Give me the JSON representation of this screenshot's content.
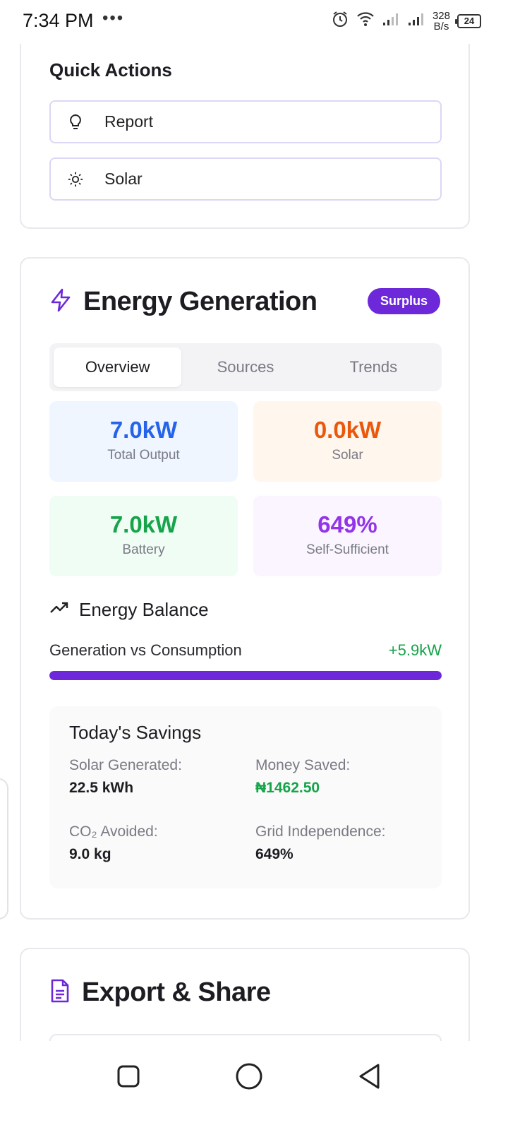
{
  "status_bar": {
    "time": "7:34 PM",
    "dots": "•••",
    "net_speed_value": "328",
    "net_speed_unit": "B/s",
    "battery": "24"
  },
  "quick_actions": {
    "title": "Quick Actions",
    "items": [
      {
        "label": "Report",
        "icon": "lightbulb-icon"
      },
      {
        "label": "Solar",
        "icon": "sun-icon"
      }
    ]
  },
  "energy_generation": {
    "title": "Energy Generation",
    "badge": "Surplus",
    "tabs": [
      {
        "label": "Overview",
        "active": true
      },
      {
        "label": "Sources",
        "active": false
      },
      {
        "label": "Trends",
        "active": false
      }
    ],
    "stats": [
      {
        "value": "7.0kW",
        "label": "Total Output",
        "color": "#2563eb",
        "bg": "#eff6ff"
      },
      {
        "value": "0.0kW",
        "label": "Solar",
        "color": "#ea580c",
        "bg": "#fff6ed"
      },
      {
        "value": "7.0kW",
        "label": "Battery",
        "color": "#16a34a",
        "bg": "#effdf4"
      },
      {
        "value": "649%",
        "label": "Self-Sufficient",
        "color": "#9333ea",
        "bg": "#faf5ff"
      }
    ],
    "balance": {
      "title": "Energy Balance",
      "label": "Generation vs Consumption",
      "value": "+5.9kW",
      "progress": 1.0
    },
    "savings": {
      "title": "Today's Savings",
      "items": [
        {
          "key": "Solar Generated:",
          "value": "22.5 kWh"
        },
        {
          "key": "Money Saved:",
          "value": "₦1462.50"
        },
        {
          "key": "CO₂ Avoided:",
          "value": "9.0 kg"
        },
        {
          "key": "Grid Independence:",
          "value": "649%"
        }
      ]
    }
  },
  "export_share": {
    "title": "Export & Share"
  },
  "colors": {
    "accent": "#6d28d9",
    "positive": "#16a34a"
  }
}
